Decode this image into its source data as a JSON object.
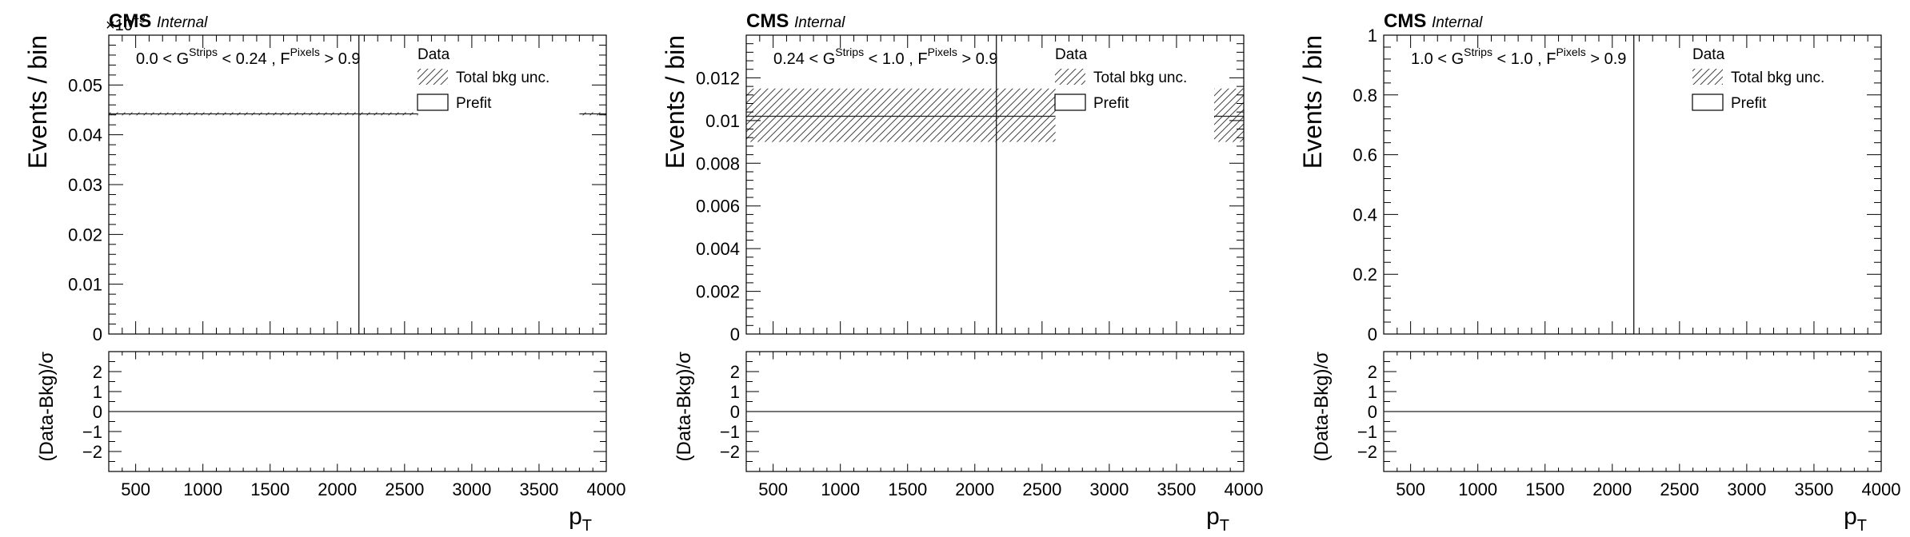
{
  "chart_data": [
    {
      "type": "bar",
      "cms_label": "CMS",
      "internal_label": "Internal",
      "exponent_label": "×10",
      "exponent_power": "−3",
      "ylabel": "Events / bin",
      "xlabel": "p",
      "xlabel_sub": "T",
      "ratio_ylabel": "(Data-Bkg)/σ",
      "xlim": [
        300,
        4000
      ],
      "ylim": [
        0,
        0.06
      ],
      "ratio_ylim": [
        -3,
        3
      ],
      "x_ticks": [
        500,
        1000,
        1500,
        2000,
        2500,
        3000,
        3500,
        4000
      ],
      "x_tick_labels": [
        "500",
        "1000",
        "1500",
        "2000",
        "2500",
        "3000",
        "3500",
        "4000"
      ],
      "y_ticks": [
        0,
        0.01,
        0.02,
        0.03,
        0.04,
        0.05
      ],
      "y_tick_labels": [
        "0",
        "0.01",
        "0.02",
        "0.03",
        "0.04",
        "0.05"
      ],
      "ratio_ticks": [
        -2,
        -1,
        0,
        1,
        2
      ],
      "ratio_tick_labels": [
        "−2",
        "−1",
        "0",
        "1",
        "2"
      ],
      "selection": {
        "lo": "0.0 < G",
        "sup1": "Strips",
        "mid": " < 0.24 , F",
        "sup2": "Pixels",
        "hi": " > 0.9"
      },
      "legend": {
        "data": "Data",
        "unc": "Total bkg unc.",
        "prefit": "Prefit"
      },
      "prefit": {
        "value": 0.0442,
        "ranges": [
          [
            300,
            2600
          ],
          [
            3800,
            4000
          ]
        ]
      },
      "unc_band": {
        "low": 0.0439,
        "high": 0.0445,
        "ranges": [
          [
            300,
            2600
          ],
          [
            3800,
            4000
          ]
        ]
      },
      "data_marker_x": 2160,
      "ratio_line": 0
    },
    {
      "type": "bar",
      "cms_label": "CMS",
      "internal_label": "Internal",
      "ylabel": "Events / bin",
      "xlabel": "p",
      "xlabel_sub": "T",
      "ratio_ylabel": "(Data-Bkg)/σ",
      "xlim": [
        300,
        4000
      ],
      "ylim": [
        0,
        0.014
      ],
      "ratio_ylim": [
        -3,
        3
      ],
      "x_ticks": [
        500,
        1000,
        1500,
        2000,
        2500,
        3000,
        3500,
        4000
      ],
      "x_tick_labels": [
        "500",
        "1000",
        "1500",
        "2000",
        "2500",
        "3000",
        "3500",
        "4000"
      ],
      "y_ticks": [
        0,
        0.002,
        0.004,
        0.006,
        0.008,
        0.01,
        0.012
      ],
      "y_tick_labels": [
        "0",
        "0.002",
        "0.004",
        "0.006",
        "0.008",
        "0.01",
        "0.012"
      ],
      "ratio_ticks": [
        -2,
        -1,
        0,
        1,
        2
      ],
      "ratio_tick_labels": [
        "−2",
        "−1",
        "0",
        "1",
        "2"
      ],
      "selection": {
        "lo": "0.24 < G",
        "sup1": "Strips",
        "mid": " < 1.0 , F",
        "sup2": "Pixels",
        "hi": " > 0.9"
      },
      "legend": {
        "data": "Data",
        "unc": "Total bkg unc.",
        "prefit": "Prefit"
      },
      "prefit": {
        "value": 0.0102,
        "ranges": [
          [
            300,
            2600
          ],
          [
            3780,
            4000
          ]
        ]
      },
      "unc_band": {
        "low": 0.009,
        "high": 0.0115,
        "ranges": [
          [
            300,
            2600
          ],
          [
            3780,
            4000
          ]
        ]
      },
      "data_marker_x": 2160,
      "ratio_line": 0
    },
    {
      "type": "bar",
      "cms_label": "CMS",
      "internal_label": "Internal",
      "ylabel": "Events / bin",
      "xlabel": "p",
      "xlabel_sub": "T",
      "ratio_ylabel": "(Data-Bkg)/σ",
      "xlim": [
        300,
        4000
      ],
      "ylim": [
        0,
        1
      ],
      "ratio_ylim": [
        -3,
        3
      ],
      "x_ticks": [
        500,
        1000,
        1500,
        2000,
        2500,
        3000,
        3500,
        4000
      ],
      "x_tick_labels": [
        "500",
        "1000",
        "1500",
        "2000",
        "2500",
        "3000",
        "3500",
        "4000"
      ],
      "y_ticks": [
        0,
        0.2,
        0.4,
        0.6,
        0.8,
        1
      ],
      "y_tick_labels": [
        "0",
        "0.2",
        "0.4",
        "0.6",
        "0.8",
        "1"
      ],
      "ratio_ticks": [
        -2,
        -1,
        0,
        1,
        2
      ],
      "ratio_tick_labels": [
        "−2",
        "−1",
        "0",
        "1",
        "2"
      ],
      "selection": {
        "lo": "1.0 < G",
        "sup1": "Strips",
        "mid": " < 1.0 , F",
        "sup2": "Pixels",
        "hi": " > 0.9"
      },
      "legend": {
        "data": "Data",
        "unc": "Total bkg unc.",
        "prefit": "Prefit"
      },
      "prefit": null,
      "unc_band": null,
      "data_marker_x": 2160,
      "ratio_line": 0
    }
  ]
}
